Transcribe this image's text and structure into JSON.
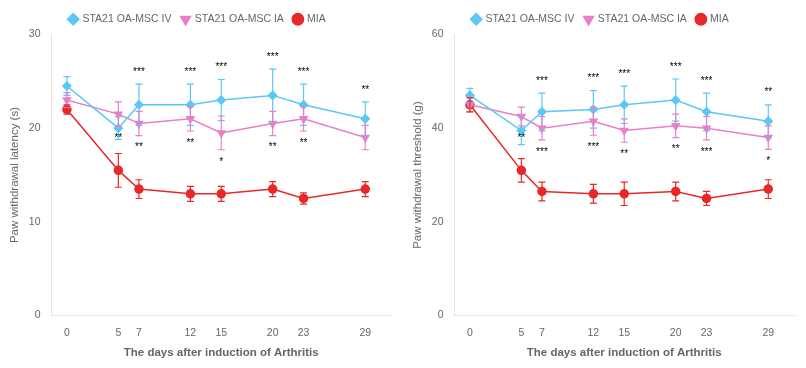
{
  "chart_data": [
    {
      "type": "line",
      "x": [
        0,
        5,
        7,
        12,
        15,
        20,
        23,
        29
      ],
      "xlabel": "The days after induction of Arthritis",
      "ylabel": "Paw withdrawal latency (s)",
      "xlim": [
        -1.5,
        31.5
      ],
      "xticks": [
        0,
        5,
        7,
        12,
        15,
        20,
        23,
        29
      ],
      "ylim": [
        0,
        30
      ],
      "yticks": [
        0,
        10,
        20,
        30
      ],
      "grid": false,
      "legend": "top",
      "series": [
        {
          "name": "STA21 OA-MSC IV",
          "color": "#5bc8f5",
          "marker": "diamond",
          "values": [
            24.5,
            20.0,
            22.5,
            22.5,
            23.0,
            23.5,
            22.5,
            21.0
          ],
          "errors": [
            1.0,
            1.2,
            2.2,
            2.2,
            2.2,
            2.8,
            2.2,
            1.8
          ]
        },
        {
          "name": "STA21 OA-MSC IA",
          "color": "#e87fc8",
          "marker": "triangle_down",
          "values": [
            23.0,
            21.5,
            20.5,
            21.0,
            19.5,
            20.5,
            21.0,
            19.0
          ],
          "errors": [
            0.8,
            1.3,
            1.3,
            1.3,
            1.8,
            1.3,
            1.3,
            1.3
          ]
        },
        {
          "name": "MIA",
          "color": "#e82828",
          "marker": "circle",
          "values": [
            22.0,
            15.5,
            13.5,
            13.0,
            13.0,
            13.5,
            12.5,
            13.5
          ],
          "errors": [
            0.5,
            1.8,
            1.0,
            0.8,
            0.8,
            0.8,
            0.6,
            0.8
          ]
        }
      ],
      "annotations": [
        {
          "x": 7,
          "text": "***",
          "series": "STA21 OA-MSC IV",
          "position": "above"
        },
        {
          "x": 12,
          "text": "***",
          "series": "STA21 OA-MSC IV",
          "position": "above"
        },
        {
          "x": 15,
          "text": "***",
          "series": "STA21 OA-MSC IV",
          "position": "above"
        },
        {
          "x": 20,
          "text": "***",
          "series": "STA21 OA-MSC IV",
          "position": "above"
        },
        {
          "x": 23,
          "text": "***",
          "series": "STA21 OA-MSC IV",
          "position": "above"
        },
        {
          "x": 29,
          "text": "**",
          "series": "STA21 OA-MSC IV",
          "position": "above"
        },
        {
          "x": 5,
          "text": "**",
          "series": "STA21 OA-MSC IA",
          "position": "below"
        },
        {
          "x": 7,
          "text": "**",
          "series": "STA21 OA-MSC IA",
          "position": "below"
        },
        {
          "x": 12,
          "text": "**",
          "series": "STA21 OA-MSC IA",
          "position": "below"
        },
        {
          "x": 15,
          "text": "*",
          "series": "STA21 OA-MSC IA",
          "position": "below"
        },
        {
          "x": 20,
          "text": "**",
          "series": "STA21 OA-MSC IA",
          "position": "below"
        },
        {
          "x": 23,
          "text": "**",
          "series": "STA21 OA-MSC IA",
          "position": "below"
        }
      ]
    },
    {
      "type": "line",
      "x": [
        0,
        5,
        7,
        12,
        15,
        20,
        23,
        29
      ],
      "xlabel": "The days after induction of Arthritis",
      "ylabel": "Paw withdrawal threshold (g)",
      "xlim": [
        -1.5,
        31.5
      ],
      "xticks": [
        0,
        5,
        7,
        12,
        15,
        20,
        23,
        29
      ],
      "ylim": [
        0,
        60
      ],
      "yticks": [
        0,
        20,
        40,
        60
      ],
      "grid": false,
      "legend": "top",
      "series": [
        {
          "name": "STA21 OA-MSC IV",
          "color": "#5bc8f5",
          "marker": "diamond",
          "values": [
            47.0,
            39.5,
            43.5,
            44.0,
            45.0,
            46.0,
            43.5,
            41.5
          ],
          "errors": [
            1.5,
            3.0,
            4.0,
            4.0,
            4.0,
            4.5,
            4.0,
            3.5
          ]
        },
        {
          "name": "STA21 OA-MSC IA",
          "color": "#e87fc8",
          "marker": "triangle_down",
          "values": [
            45.0,
            42.5,
            40.0,
            41.5,
            39.5,
            40.5,
            40.0,
            38.0
          ],
          "errors": [
            1.5,
            2.0,
            2.5,
            3.0,
            2.5,
            2.5,
            2.5,
            2.5
          ]
        },
        {
          "name": "MIA",
          "color": "#e82828",
          "marker": "circle",
          "values": [
            45.0,
            31.0,
            26.5,
            26.0,
            26.0,
            26.5,
            25.0,
            27.0
          ],
          "errors": [
            1.5,
            2.5,
            2.0,
            2.0,
            2.5,
            2.0,
            1.5,
            2.0
          ]
        }
      ],
      "annotations": [
        {
          "x": 7,
          "text": "***",
          "series": "STA21 OA-MSC IV",
          "position": "above"
        },
        {
          "x": 12,
          "text": "***",
          "series": "STA21 OA-MSC IV",
          "position": "above"
        },
        {
          "x": 15,
          "text": "***",
          "series": "STA21 OA-MSC IV",
          "position": "above"
        },
        {
          "x": 20,
          "text": "***",
          "series": "STA21 OA-MSC IV",
          "position": "above"
        },
        {
          "x": 23,
          "text": "***",
          "series": "STA21 OA-MSC IV",
          "position": "above"
        },
        {
          "x": 29,
          "text": "**",
          "series": "STA21 OA-MSC IV",
          "position": "above"
        },
        {
          "x": 5,
          "text": "**",
          "series": "STA21 OA-MSC IA",
          "position": "below"
        },
        {
          "x": 7,
          "text": "***",
          "series": "STA21 OA-MSC IA",
          "position": "below"
        },
        {
          "x": 12,
          "text": "***",
          "series": "STA21 OA-MSC IA",
          "position": "below"
        },
        {
          "x": 15,
          "text": "**",
          "series": "STA21 OA-MSC IA",
          "position": "below"
        },
        {
          "x": 20,
          "text": "**",
          "series": "STA21 OA-MSC IA",
          "position": "below"
        },
        {
          "x": 23,
          "text": "***",
          "series": "STA21 OA-MSC IA",
          "position": "below"
        },
        {
          "x": 29,
          "text": "*",
          "series": "STA21 OA-MSC IA",
          "position": "below"
        }
      ]
    }
  ]
}
